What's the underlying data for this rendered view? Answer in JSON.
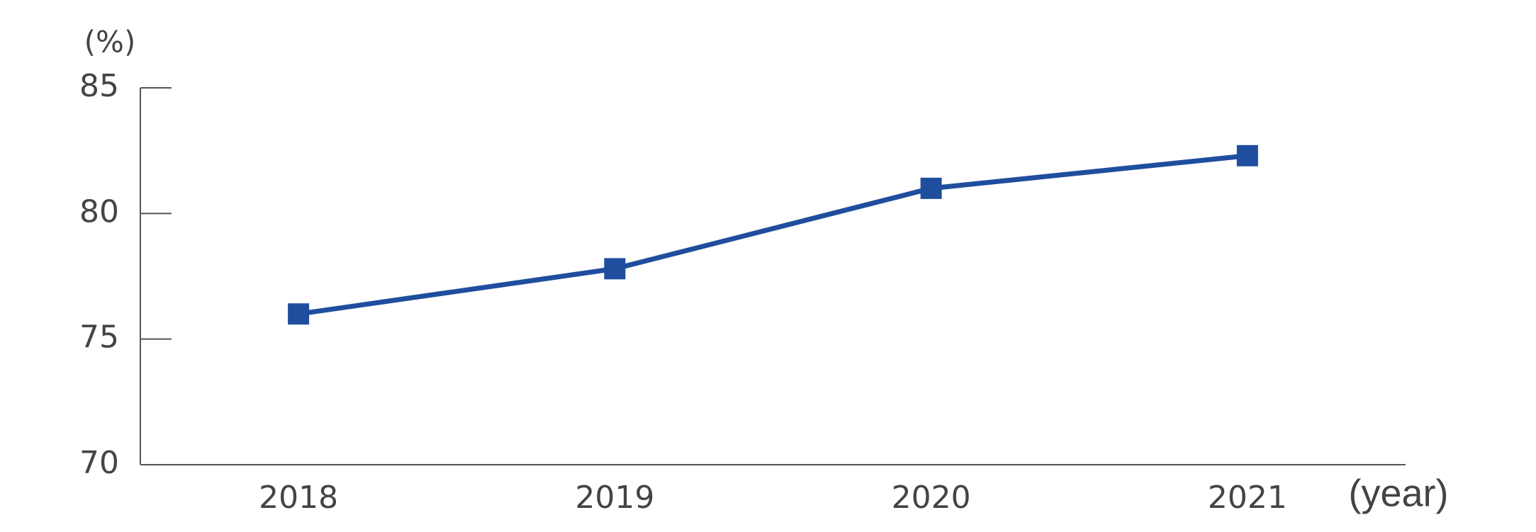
{
  "chart_data": {
    "type": "line",
    "categories": [
      "2018",
      "2019",
      "2020",
      "2021"
    ],
    "values": [
      76.0,
      77.8,
      81.0,
      82.3
    ],
    "color": "#1f4e9e",
    "ylim": [
      70,
      85
    ],
    "yticks": [
      70,
      75,
      80,
      85
    ],
    "y_label": "(%)",
    "x_label": "(year)"
  }
}
